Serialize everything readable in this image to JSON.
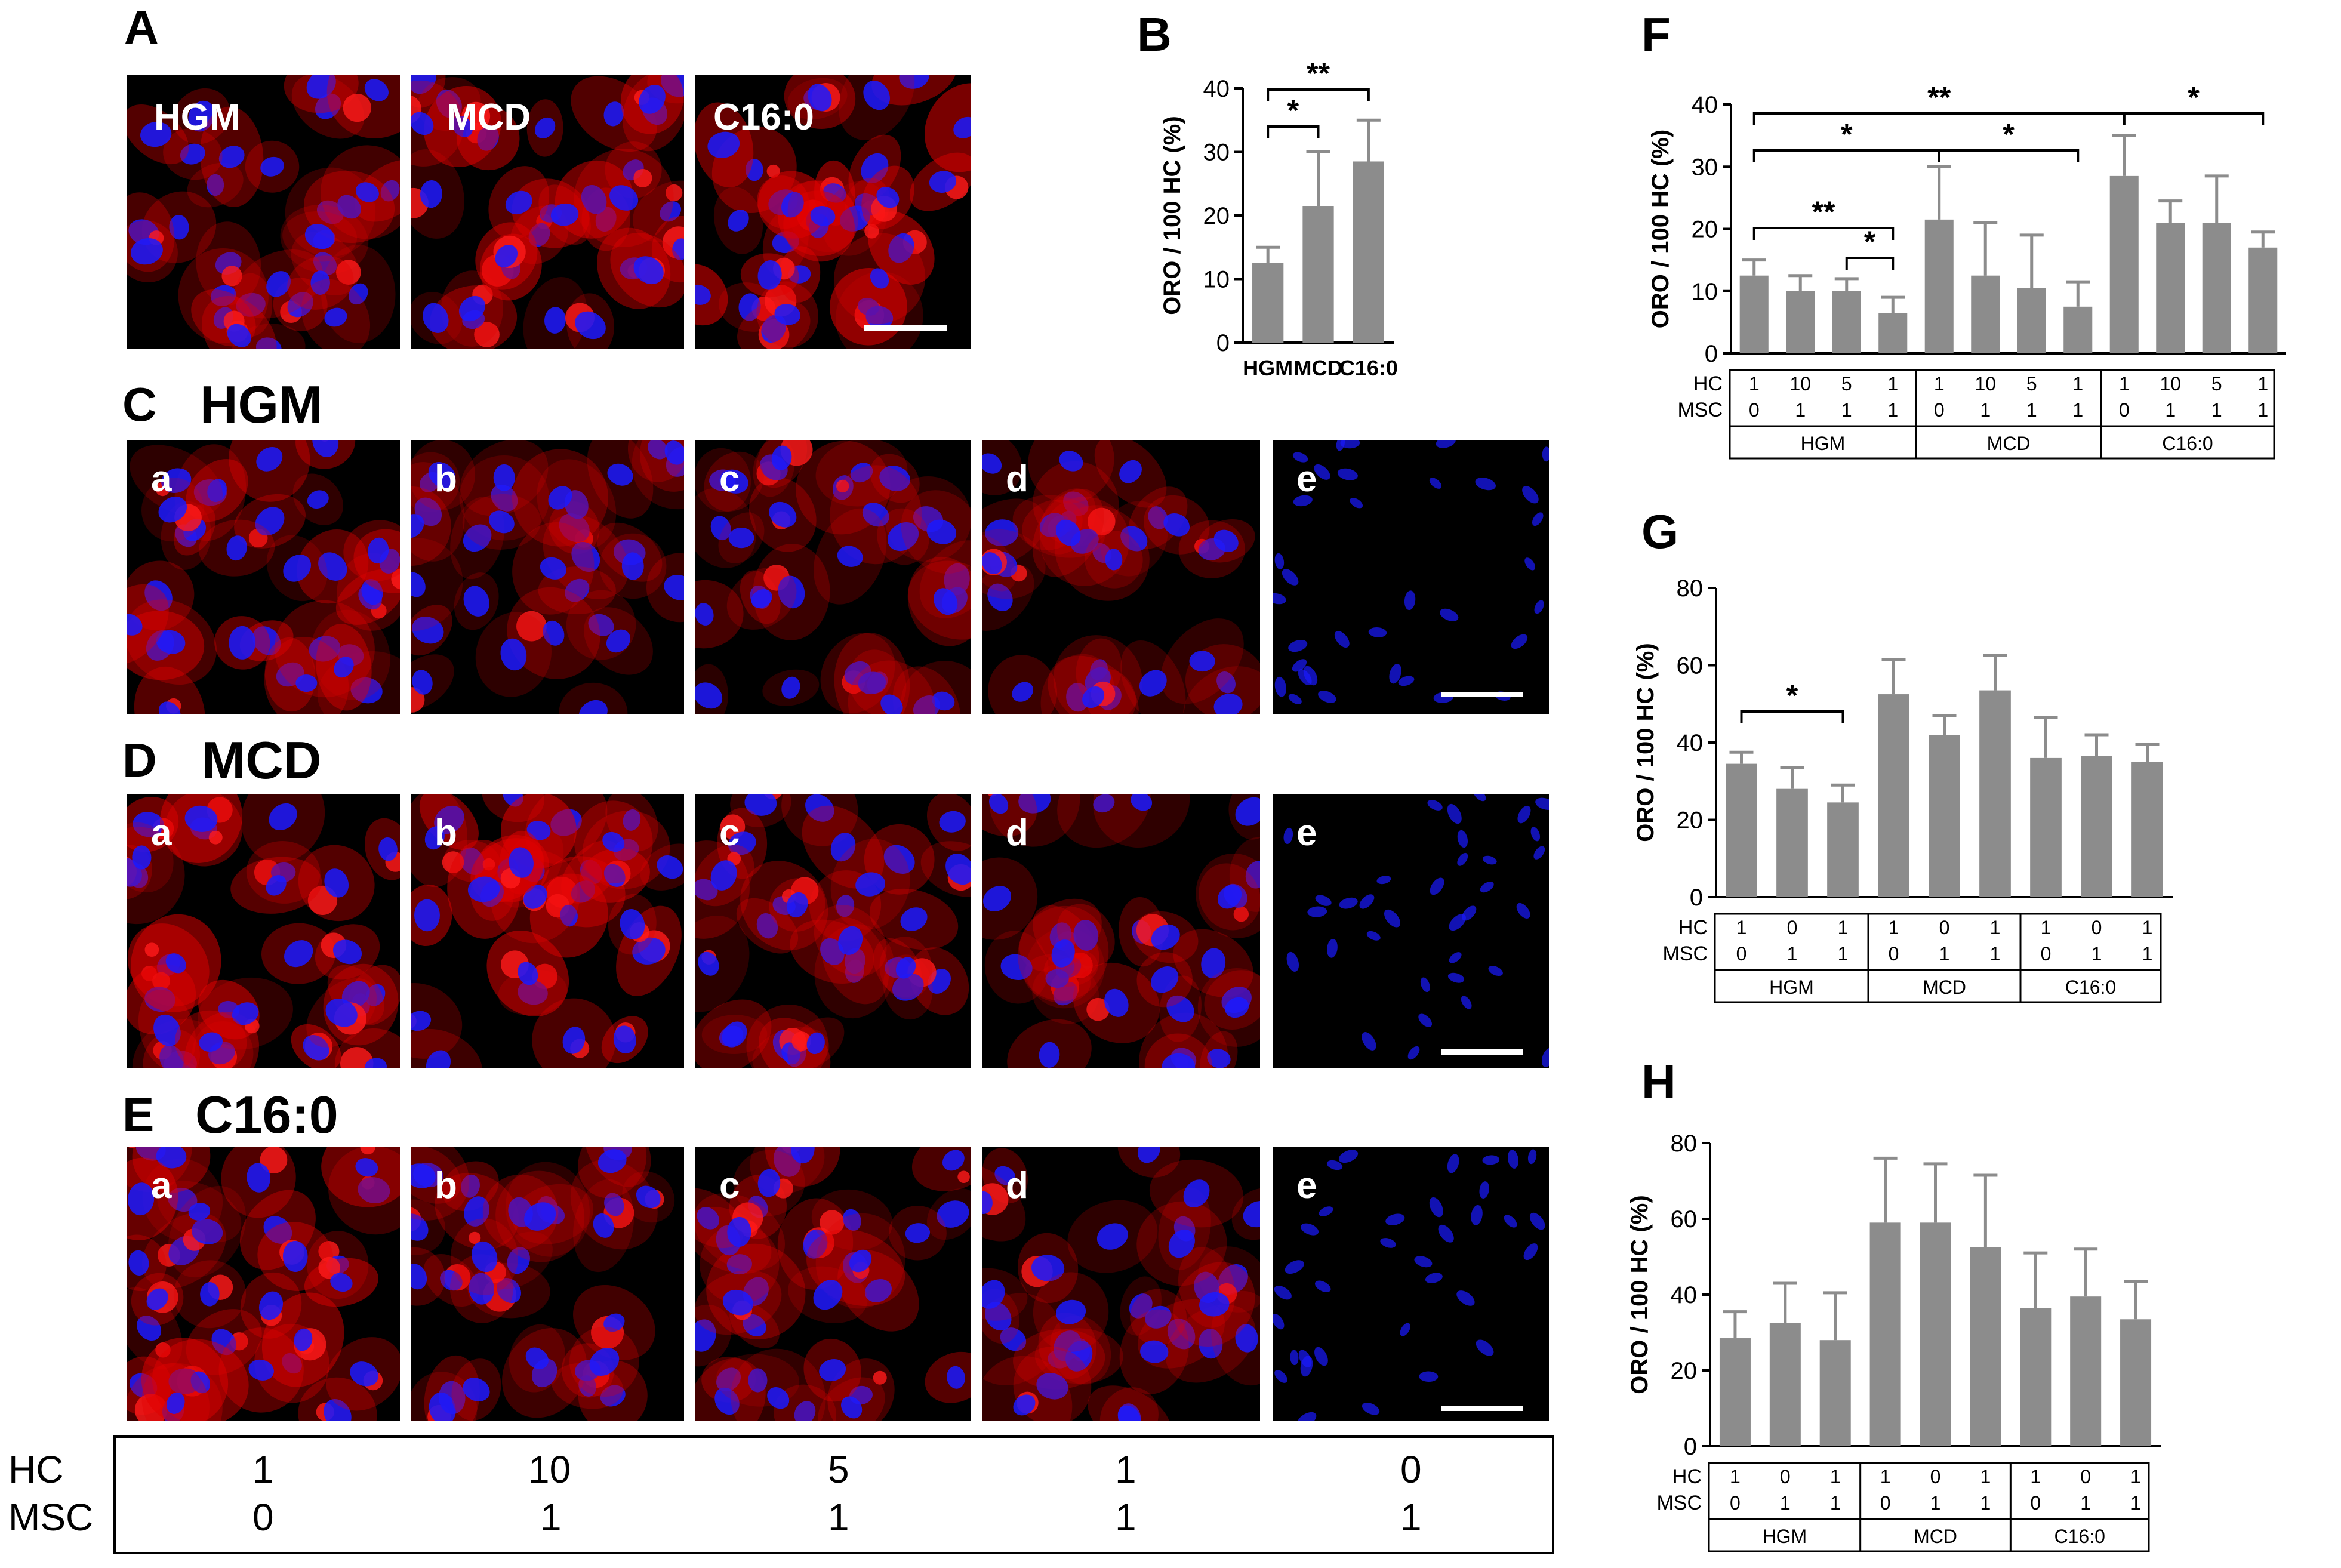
{
  "panels": {
    "A": {
      "letter": "A",
      "images": [
        {
          "label": "HGM"
        },
        {
          "label": "MCD"
        },
        {
          "label": "C16:0"
        }
      ]
    },
    "C": {
      "letter": "C",
      "title": "HGM",
      "images": [
        {
          "label": "a"
        },
        {
          "label": "b"
        },
        {
          "label": "c"
        },
        {
          "label": "d"
        },
        {
          "label": "e"
        }
      ]
    },
    "D": {
      "letter": "D",
      "title": "MCD",
      "images": [
        {
          "label": "a"
        },
        {
          "label": "b"
        },
        {
          "label": "c"
        },
        {
          "label": "d"
        },
        {
          "label": "e"
        }
      ]
    },
    "E": {
      "letter": "E",
      "title": "C16:0",
      "images": [
        {
          "label": "a"
        },
        {
          "label": "b"
        },
        {
          "label": "c"
        },
        {
          "label": "d"
        },
        {
          "label": "e"
        }
      ]
    }
  },
  "bottom_table": {
    "row1_label": "HC",
    "row2_label": "MSC",
    "hc": [
      "1",
      "10",
      "5",
      "1",
      "0"
    ],
    "msc": [
      "0",
      "1",
      "1",
      "1",
      "1"
    ]
  },
  "colors": {
    "bar": "#8c8c8c",
    "nuclei": "#1a1aff",
    "lipid": "#e00000"
  },
  "chart_data": [
    {
      "id": "B",
      "letter": "B",
      "type": "bar",
      "ylabel": "ORO / 100 HC (%)",
      "ylim": [
        0,
        40
      ],
      "yticks": [
        "0",
        "10",
        "20",
        "30",
        "40"
      ],
      "categories": [
        "HGM",
        "MCD",
        "C16:0"
      ],
      "values": [
        12.5,
        21.5,
        28.5
      ],
      "errors": [
        2.5,
        8.5,
        6.5
      ],
      "annotations": [
        {
          "from": 0,
          "to": 1,
          "label": "*"
        },
        {
          "from": 0,
          "to": 2,
          "label": "**"
        }
      ]
    },
    {
      "id": "F",
      "letter": "F",
      "type": "bar",
      "ylabel": "ORO / 100 HC (%)",
      "ylim": [
        0,
        40
      ],
      "yticks": [
        "0",
        "10",
        "20",
        "30",
        "40"
      ],
      "table": {
        "row1_label": "HC",
        "row2_label": "MSC",
        "hc": [
          "1",
          "10",
          "5",
          "1",
          "1",
          "10",
          "5",
          "1",
          "1",
          "10",
          "5",
          "1"
        ],
        "msc": [
          "0",
          "1",
          "1",
          "1",
          "0",
          "1",
          "1",
          "1",
          "0",
          "1",
          "1",
          "1"
        ],
        "groups": [
          "HGM",
          "MCD",
          "C16:0"
        ]
      },
      "values": [
        12.5,
        10.0,
        10.0,
        6.5,
        21.5,
        12.5,
        10.5,
        7.5,
        28.5,
        21.0,
        21.0,
        17.0
      ],
      "errors": [
        2.5,
        2.5,
        2.0,
        2.5,
        8.5,
        8.5,
        8.5,
        4.0,
        6.5,
        3.5,
        7.5,
        2.5
      ],
      "annotations": [
        {
          "from": 0,
          "to": 3,
          "label": "**"
        },
        {
          "from": 2,
          "to": 3,
          "label": "*"
        },
        {
          "from": 0,
          "to": 4,
          "label": "*"
        },
        {
          "from": 4,
          "to": 7,
          "label": "*"
        },
        {
          "from": 0,
          "to": 8,
          "label": "**"
        },
        {
          "from": 8,
          "to": 11,
          "label": "*"
        }
      ]
    },
    {
      "id": "G",
      "letter": "G",
      "type": "bar",
      "ylabel": "ORO / 100 HC (%)",
      "ylim": [
        0,
        80
      ],
      "yticks": [
        "0",
        "20",
        "40",
        "60",
        "80"
      ],
      "table": {
        "row1_label": "HC",
        "row2_label": "MSC",
        "hc": [
          "1",
          "0",
          "1",
          "1",
          "0",
          "1",
          "1",
          "0",
          "1"
        ],
        "msc": [
          "0",
          "1",
          "1",
          "0",
          "1",
          "1",
          "0",
          "1",
          "1"
        ],
        "groups": [
          "HGM",
          "MCD",
          "C16:0"
        ]
      },
      "values": [
        34.5,
        28.0,
        24.5,
        52.5,
        42.0,
        53.5,
        36.0,
        36.5,
        35.0
      ],
      "errors": [
        3.0,
        5.5,
        4.5,
        9.0,
        5.0,
        9.0,
        10.5,
        5.5,
        4.5
      ],
      "annotations": [
        {
          "from": 0,
          "to": 2,
          "label": "*"
        }
      ]
    },
    {
      "id": "H",
      "letter": "H",
      "type": "bar",
      "ylabel": "ORO / 100 HC (%)",
      "ylim": [
        0,
        80
      ],
      "yticks": [
        "0",
        "20",
        "40",
        "60",
        "80"
      ],
      "table": {
        "row1_label": "HC",
        "row2_label": "MSC",
        "hc": [
          "1",
          "0",
          "1",
          "1",
          "0",
          "1",
          "1",
          "0",
          "1"
        ],
        "msc": [
          "0",
          "1",
          "1",
          "0",
          "1",
          "1",
          "0",
          "1",
          "1"
        ],
        "groups": [
          "HGM",
          "MCD",
          "C16:0"
        ]
      },
      "values": [
        28.5,
        32.5,
        28.0,
        59.0,
        59.0,
        52.5,
        36.5,
        39.5,
        33.5
      ],
      "errors": [
        7.0,
        10.5,
        12.5,
        17.0,
        15.5,
        19.0,
        14.5,
        12.5,
        10.0
      ],
      "annotations": []
    }
  ]
}
